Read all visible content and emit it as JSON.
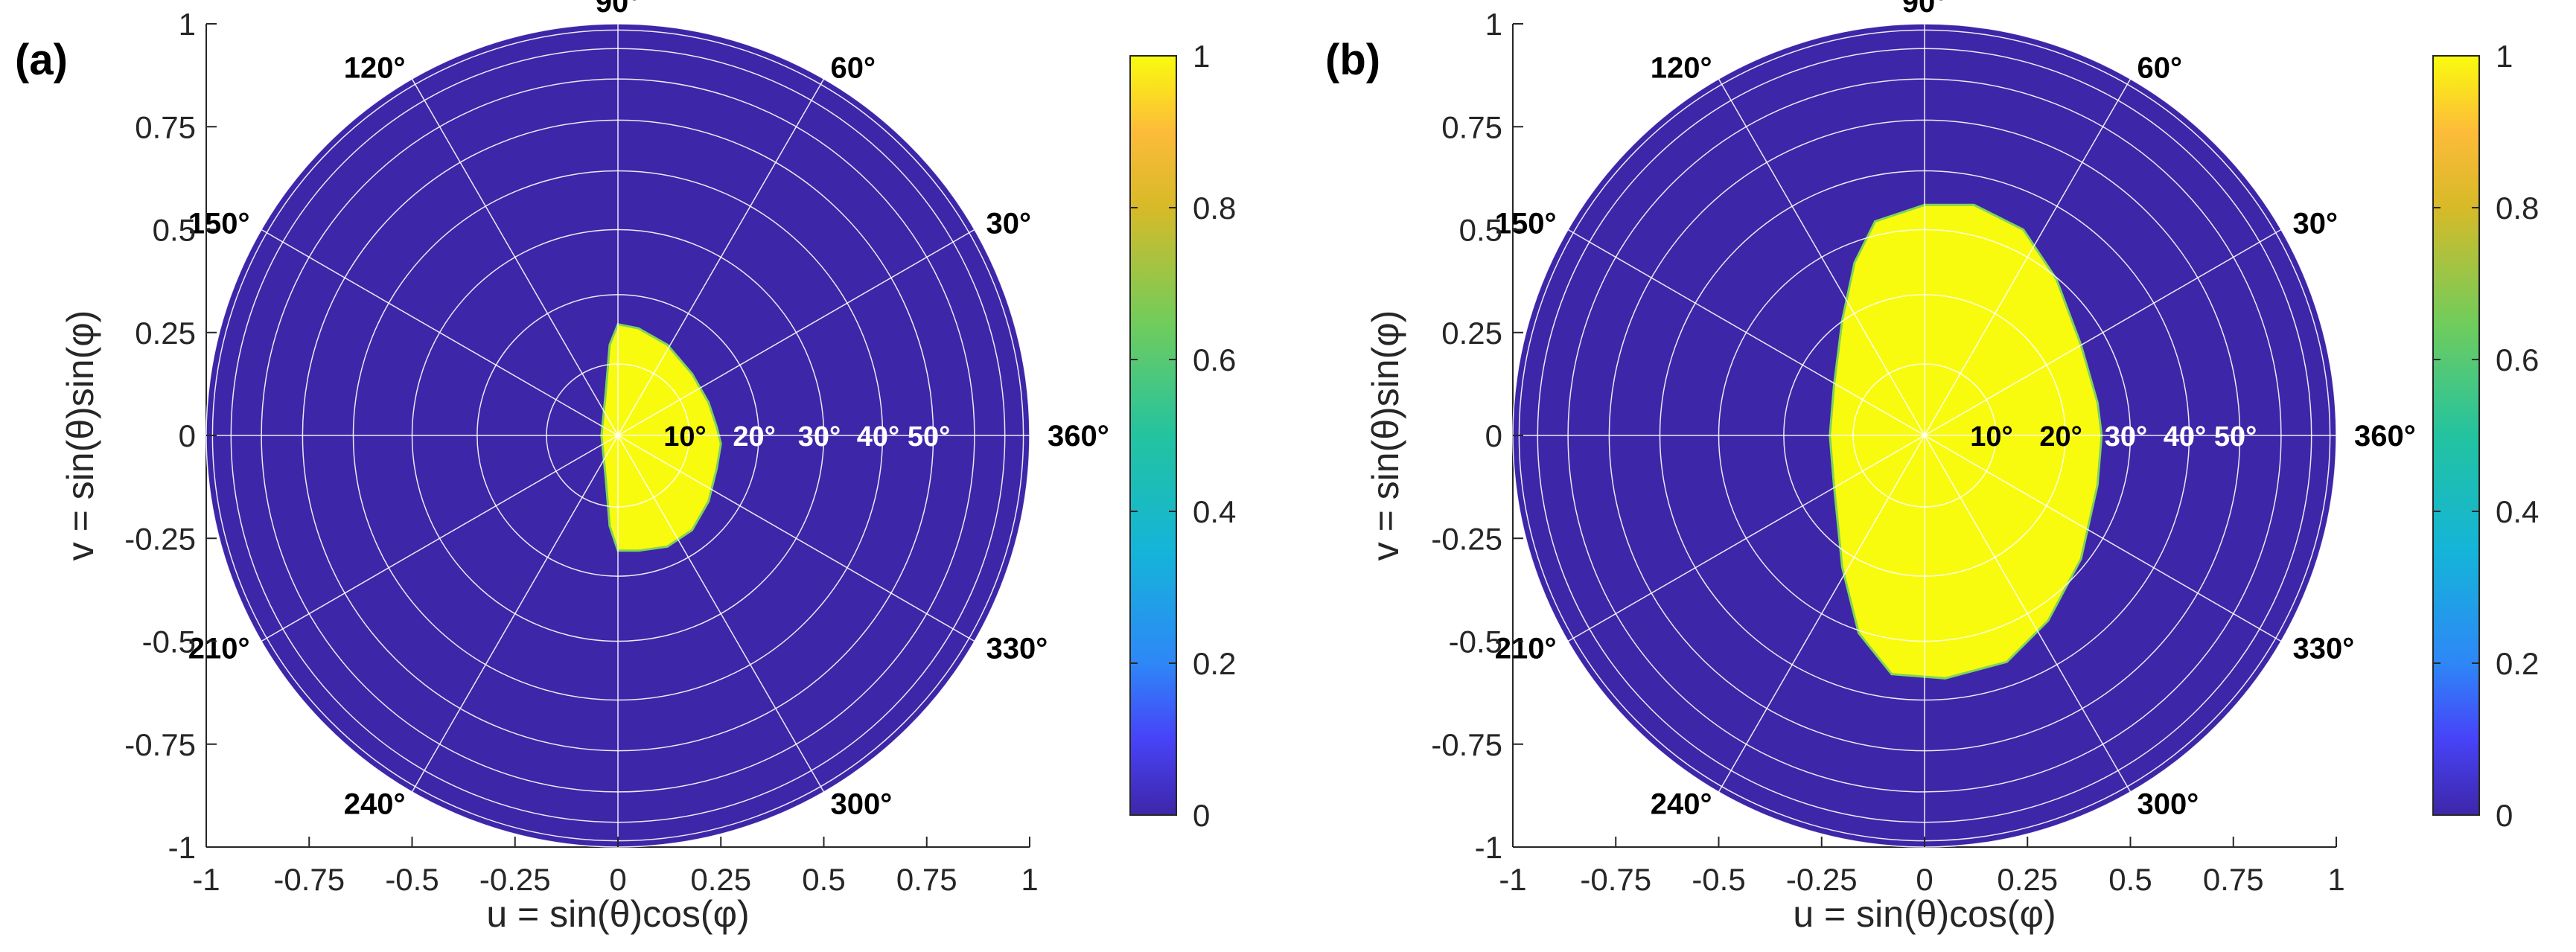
{
  "figure": {
    "description_panels": [
      "(a)",
      "(b)"
    ]
  },
  "chart_data": [
    {
      "type": "heatmap",
      "panel_label": "(a)",
      "title": "",
      "xlabel": "u = sin(θ)cos(φ)",
      "ylabel": "v = sin(θ)sin(φ)",
      "xlim": [
        -1,
        1
      ],
      "ylim": [
        -1,
        1
      ],
      "xticks": [
        "-1",
        "-0.75",
        "-0.5",
        "-0.25",
        "0",
        "0.25",
        "0.5",
        "0.75",
        "1"
      ],
      "yticks": [
        "1",
        "0.75",
        "0.5",
        "0.25",
        "0",
        "-0.25",
        "-0.5",
        "-0.75",
        "-1"
      ],
      "angle_ticks": [
        {
          "deg": 90,
          "label": "90°"
        },
        {
          "deg": 60,
          "label": "60°"
        },
        {
          "deg": 30,
          "label": "30°"
        },
        {
          "deg": 0,
          "label": "360°"
        },
        {
          "deg": 120,
          "label": "120°"
        },
        {
          "deg": 150,
          "label": "150°"
        },
        {
          "deg": 210,
          "label": "210°"
        },
        {
          "deg": 240,
          "label": "240°"
        },
        {
          "deg": 300,
          "label": "300°"
        },
        {
          "deg": 330,
          "label": "330°"
        }
      ],
      "radial_ticks": [
        {
          "theta": 10,
          "label": "10°"
        },
        {
          "theta": 20,
          "label": "20°"
        },
        {
          "theta": 30,
          "label": "30°"
        },
        {
          "theta": 40,
          "label": "40°"
        },
        {
          "theta": 50,
          "label": "50°"
        }
      ],
      "colorbar": {
        "ticks": [
          "0",
          "0.2",
          "0.4",
          "0.6",
          "0.8",
          "1"
        ],
        "range": [
          0,
          1
        ],
        "colormap": "parula"
      },
      "region": {
        "value_inside": 1,
        "value_outside": 0,
        "boundary_u": [
          0.0,
          0.05,
          0.12,
          0.18,
          0.22,
          0.24,
          0.25,
          0.24,
          0.22,
          0.18,
          0.12,
          0.05,
          0.0,
          -0.02,
          -0.03,
          -0.04,
          -0.03,
          -0.02,
          0.0
        ],
        "boundary_v": [
          0.27,
          0.26,
          0.22,
          0.15,
          0.08,
          0.02,
          -0.02,
          -0.08,
          -0.16,
          -0.23,
          -0.27,
          -0.28,
          -0.28,
          -0.22,
          -0.1,
          0.0,
          0.1,
          0.22,
          0.27
        ]
      },
      "colors": {
        "low": "#3e26a8",
        "high": "#f9fb0e",
        "grid": "#ffffff"
      }
    },
    {
      "type": "heatmap",
      "panel_label": "(b)",
      "title": "",
      "xlabel": "u = sin(θ)cos(φ)",
      "ylabel": "v = sin(θ)sin(φ)",
      "xlim": [
        -1,
        1
      ],
      "ylim": [
        -1,
        1
      ],
      "xticks": [
        "-1",
        "-0.75",
        "-0.5",
        "-0.25",
        "0",
        "0.25",
        "0.5",
        "0.75",
        "1"
      ],
      "yticks": [
        "1",
        "0.75",
        "0.5",
        "0.25",
        "0",
        "-0.25",
        "-0.5",
        "-0.75",
        "-1"
      ],
      "angle_ticks": [
        {
          "deg": 90,
          "label": "90°"
        },
        {
          "deg": 60,
          "label": "60°"
        },
        {
          "deg": 30,
          "label": "30°"
        },
        {
          "deg": 0,
          "label": "360°"
        },
        {
          "deg": 120,
          "label": "120°"
        },
        {
          "deg": 150,
          "label": "150°"
        },
        {
          "deg": 210,
          "label": "210°"
        },
        {
          "deg": 240,
          "label": "240°"
        },
        {
          "deg": 300,
          "label": "300°"
        },
        {
          "deg": 330,
          "label": "330°"
        }
      ],
      "radial_ticks": [
        {
          "theta": 10,
          "label": "10°"
        },
        {
          "theta": 20,
          "label": "20°"
        },
        {
          "theta": 30,
          "label": "30°"
        },
        {
          "theta": 40,
          "label": "40°"
        },
        {
          "theta": 50,
          "label": "50°"
        }
      ],
      "colorbar": {
        "ticks": [
          "0",
          "0.2",
          "0.4",
          "0.6",
          "0.8",
          "1"
        ],
        "range": [
          0,
          1
        ],
        "colormap": "parula"
      },
      "region": {
        "value_inside": 1,
        "value_outside": 0,
        "boundary_u": [
          -0.12,
          0.0,
          0.12,
          0.24,
          0.32,
          0.38,
          0.42,
          0.43,
          0.42,
          0.38,
          0.3,
          0.2,
          0.05,
          -0.08,
          -0.16,
          -0.2,
          -0.22,
          -0.23,
          -0.22,
          -0.2,
          -0.17
        ],
        "boundary_v": [
          0.52,
          0.56,
          0.56,
          0.5,
          0.38,
          0.22,
          0.08,
          0.0,
          -0.12,
          -0.3,
          -0.45,
          -0.55,
          -0.59,
          -0.58,
          -0.48,
          -0.32,
          -0.12,
          0.0,
          0.12,
          0.28,
          0.42
        ]
      },
      "colors": {
        "low": "#3e26a8",
        "high": "#f9fb0e",
        "grid": "#ffffff"
      }
    }
  ]
}
